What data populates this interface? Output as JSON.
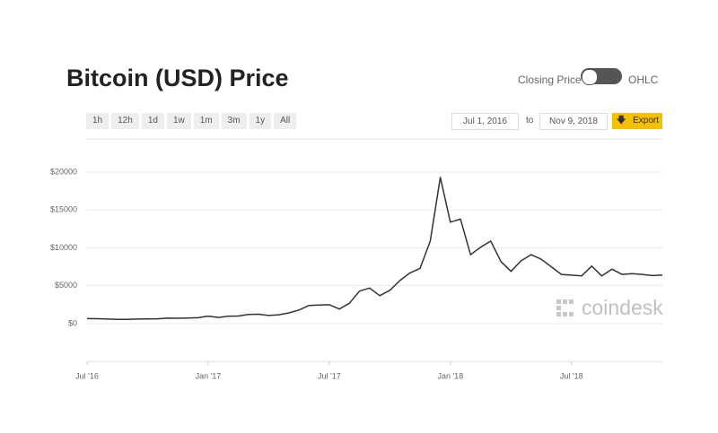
{
  "header": {
    "title": "Bitcoin (USD) Price",
    "toggle_left": "Closing Price",
    "toggle_right": "OHLC"
  },
  "controls": {
    "range_buttons": [
      "1h",
      "12h",
      "1d",
      "1w",
      "1m",
      "3m",
      "1y",
      "All"
    ],
    "from": "Jul 1, 2016",
    "to_label": "to",
    "to": "Nov 9, 2018",
    "export": "Export"
  },
  "chart_data": {
    "type": "line",
    "watermark": "coindesk",
    "color": "#333333",
    "grid": true,
    "categories": [
      "Jul '16",
      null,
      null,
      null,
      null,
      null,
      null,
      null,
      null,
      null,
      null,
      null,
      "Jan '17",
      null,
      null,
      null,
      null,
      null,
      null,
      null,
      null,
      null,
      null,
      null,
      "Jul '17",
      null,
      null,
      null,
      null,
      null,
      null,
      null,
      null,
      null,
      null,
      null,
      "Jan '18",
      null,
      null,
      null,
      null,
      null,
      null,
      null,
      null,
      null,
      null,
      null,
      "Jul '18",
      null,
      null,
      null,
      null,
      null,
      null,
      null,
      null,
      null
    ],
    "values": [
      670,
      660,
      610,
      570,
      575,
      610,
      615,
      640,
      730,
      710,
      750,
      780,
      1000,
      820,
      990,
      1010,
      1220,
      1250,
      1080,
      1180,
      1420,
      1800,
      2400,
      2450,
      2500,
      1930,
      2700,
      4300,
      4700,
      3700,
      4400,
      5700,
      6700,
      7300,
      10900,
      19300,
      13400,
      13800,
      9100,
      10100,
      10900,
      8200,
      6900,
      8300,
      9100,
      8500,
      7500,
      6500,
      6400,
      6300,
      7600,
      6300,
      7200,
      6500,
      6600,
      6500,
      6350,
      6400
    ],
    "ylim": [
      -5000,
      21500
    ],
    "yticks": [
      {
        "value": 0,
        "label": "$0"
      },
      {
        "value": 5000,
        "label": "$5000"
      },
      {
        "value": 10000,
        "label": "$10000"
      },
      {
        "value": 15000,
        "label": "$15000"
      },
      {
        "value": 20000,
        "label": "$20000"
      }
    ]
  }
}
